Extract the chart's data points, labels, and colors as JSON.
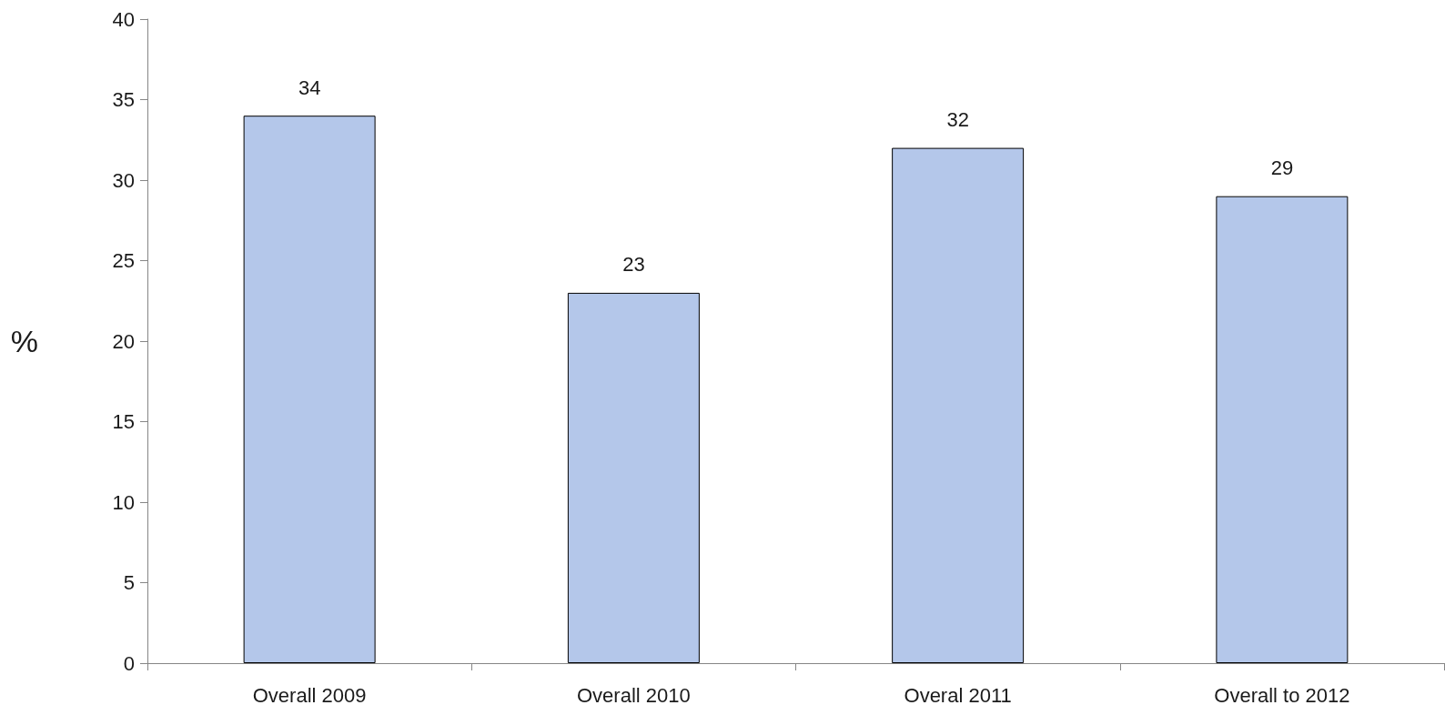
{
  "chart_data": {
    "type": "bar",
    "ylabel": "%",
    "categories": [
      "Overall 2009",
      "Overall 2010",
      "Overal 2011",
      "Overall to 2012"
    ],
    "values": [
      34,
      23,
      32,
      29
    ],
    "color": "#b4c7ea",
    "ylim": [
      0,
      40
    ],
    "yticks": [
      0,
      5,
      10,
      15,
      20,
      25,
      30,
      35,
      40
    ],
    "grid": false,
    "data_labels": true
  }
}
